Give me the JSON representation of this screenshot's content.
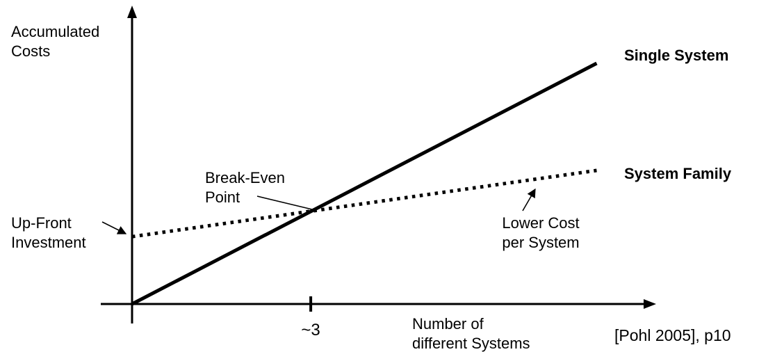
{
  "page": {
    "citation": "[Pohl 2005], p10"
  },
  "chart_data": {
    "type": "line",
    "title": "",
    "ylabel": "Accumulated\nCosts",
    "xlabel": "Number of\ndifferent Systems",
    "xlim": [
      0,
      8.8
    ],
    "ylim": [
      0,
      10
    ],
    "grid": false,
    "legend_position": "end-of-line labels",
    "x_ticks": [
      {
        "value": 3,
        "label": "~3"
      }
    ],
    "series": [
      {
        "name": "Single System",
        "style": "solid",
        "color": "#000000",
        "points": [
          [
            0,
            0
          ],
          [
            7.8,
            8.65
          ]
        ]
      },
      {
        "name": "System Family",
        "style": "dotted",
        "color": "#000000",
        "points": [
          [
            0,
            2.42
          ],
          [
            7.8,
            4.8
          ]
        ]
      }
    ],
    "annotations": [
      {
        "label": "Break-Even\nPoint",
        "target_x": 3,
        "target_y": 3.33
      },
      {
        "label": "Up-Front\nInvestment",
        "target_x": 0,
        "target_y": 2.42
      },
      {
        "label": "Lower Cost\nper System",
        "target_x": 6.8,
        "target_y": 4.35
      }
    ],
    "break_even_x": 3
  }
}
